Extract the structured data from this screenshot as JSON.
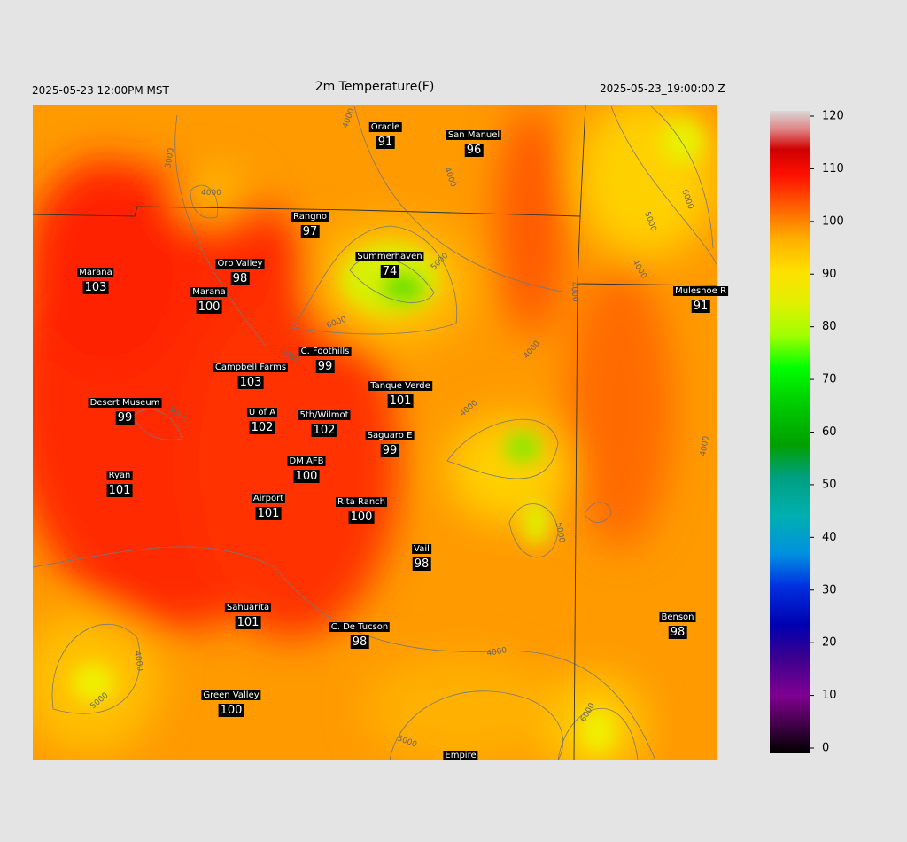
{
  "header": {
    "left": "2025-05-23 12:00PM MST",
    "title": "2m Temperature(F)",
    "right": "2025-05-23_19:00:00 Z"
  },
  "stations": [
    {
      "name": "Oracle",
      "value": 91
    },
    {
      "name": "San Manuel",
      "value": 96
    },
    {
      "name": "Rangno",
      "value": 97
    },
    {
      "name": "Summerhaven",
      "value": 74
    },
    {
      "name": "Marana",
      "value": 103
    },
    {
      "name": "Oro Valley",
      "value": 98
    },
    {
      "name": "Marana",
      "value": 100
    },
    {
      "name": "Muleshoe R",
      "value": 91
    },
    {
      "name": "C. Foothills",
      "value": 99
    },
    {
      "name": "Campbell Farms",
      "value": 103
    },
    {
      "name": "Tanque Verde",
      "value": 101
    },
    {
      "name": "Desert Museum",
      "value": 99
    },
    {
      "name": "U of A",
      "value": 102
    },
    {
      "name": "5th/Wilmot",
      "value": 102
    },
    {
      "name": "Saguaro E",
      "value": 99
    },
    {
      "name": "DM AFB",
      "value": 100
    },
    {
      "name": "Ryan",
      "value": 101
    },
    {
      "name": "Airport",
      "value": 101
    },
    {
      "name": "Rita Ranch",
      "value": 100
    },
    {
      "name": "Vail",
      "value": 98
    },
    {
      "name": "Benson",
      "value": 98
    },
    {
      "name": "Sahuarita",
      "value": 101
    },
    {
      "name": "C. De Tucson",
      "value": 98
    },
    {
      "name": "Green Valley",
      "value": 100
    },
    {
      "name": "Empire"
    }
  ],
  "contour_labels": [
    "4000",
    "3000",
    "4000",
    "4000",
    "6000",
    "5000",
    "4000",
    "6000",
    "5000",
    "4000",
    "4000",
    "3000",
    "5000",
    "4000",
    "4000",
    "5000",
    "4000",
    "5000",
    "6000",
    "4000",
    "5000"
  ],
  "colorbar": {
    "ticks": [
      0,
      10,
      20,
      30,
      40,
      50,
      60,
      70,
      80,
      90,
      100,
      110,
      120
    ]
  }
}
